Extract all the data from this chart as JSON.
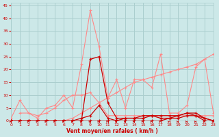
{
  "bg_color": "#cce8e8",
  "grid_color": "#aacece",
  "line_color_light": "#ff8888",
  "line_color_dark": "#cc0000",
  "xlabel": "Vent moyen/en rafales ( km/h )",
  "xlabel_color": "#cc0000",
  "xlim": [
    0,
    23
  ],
  "ylim": [
    0,
    46
  ],
  "yticks": [
    0,
    5,
    10,
    15,
    20,
    25,
    30,
    35,
    40,
    45
  ],
  "xticks": [
    0,
    1,
    2,
    3,
    4,
    5,
    6,
    7,
    8,
    9,
    10,
    11,
    12,
    13,
    14,
    15,
    16,
    17,
    18,
    19,
    20,
    21,
    22,
    23
  ],
  "light_lines": [
    {
      "x": [
        0,
        1,
        2,
        3,
        4,
        5,
        6,
        7,
        8,
        9,
        10,
        11,
        12,
        13,
        14,
        15,
        16,
        17,
        18,
        19,
        20,
        21,
        22,
        23
      ],
      "y": [
        1,
        8,
        3,
        1,
        5,
        6,
        10,
        5,
        22,
        43,
        29,
        9,
        16,
        5,
        16,
        16,
        13,
        26,
        3,
        3,
        6,
        21,
        24,
        3
      ]
    },
    {
      "x": [
        0,
        1,
        2,
        3,
        4,
        5,
        6,
        7,
        8,
        9,
        10,
        11,
        12,
        13,
        14,
        15,
        16,
        17,
        18,
        19,
        20,
        21,
        22,
        23
      ],
      "y": [
        0,
        0,
        0,
        0,
        0,
        0,
        0,
        1,
        3,
        5,
        7,
        9,
        11,
        13,
        15,
        16,
        17,
        18,
        19,
        20,
        21,
        22,
        24,
        26
      ]
    },
    {
      "x": [
        1,
        2,
        3,
        4,
        5,
        6,
        7,
        8,
        9,
        10,
        11,
        12,
        13,
        14,
        15,
        16,
        17,
        18,
        19,
        20,
        21,
        22,
        23
      ],
      "y": [
        3,
        3,
        2,
        3,
        5,
        8,
        10,
        10,
        11,
        7,
        2,
        2,
        2,
        2,
        2,
        2,
        2,
        2,
        2,
        2,
        2,
        2,
        2
      ]
    }
  ],
  "dark_lines": [
    {
      "x": [
        0,
        1,
        2,
        3,
        4,
        5,
        6,
        7,
        8,
        9,
        10,
        11,
        12,
        13,
        14,
        15,
        16,
        17,
        18,
        19,
        20,
        21,
        22,
        23
      ],
      "y": [
        0,
        0,
        0,
        0,
        0,
        0,
        0,
        0,
        0,
        24,
        25,
        7,
        1,
        1,
        1,
        1,
        2,
        1,
        1,
        1,
        2,
        2,
        1,
        0
      ]
    },
    {
      "x": [
        0,
        1,
        2,
        3,
        4,
        5,
        6,
        7,
        8,
        9,
        10,
        11,
        12,
        13,
        14,
        15,
        16,
        17,
        18,
        19,
        20,
        21,
        22,
        23
      ],
      "y": [
        0,
        0,
        0,
        0,
        0,
        0,
        0,
        0,
        1,
        2,
        6,
        1,
        0,
        0,
        0,
        0,
        0,
        0,
        1,
        2,
        3,
        2,
        0,
        0
      ]
    },
    {
      "x": [
        0,
        1,
        2,
        3,
        4,
        5,
        6,
        7,
        8,
        9,
        10,
        11,
        12,
        13,
        14,
        15,
        16,
        17,
        18,
        19,
        20,
        21,
        22,
        23
      ],
      "y": [
        0,
        0,
        0,
        0,
        0,
        0,
        0,
        0,
        0,
        0,
        0,
        0,
        0,
        1,
        1,
        2,
        2,
        2,
        2,
        2,
        3,
        3,
        1,
        0
      ]
    }
  ],
  "arrows_x": [
    0,
    1,
    2,
    3,
    4,
    5,
    6,
    7,
    8,
    9,
    10,
    11,
    12,
    13,
    14,
    15,
    16,
    17,
    18,
    19,
    20,
    21,
    22,
    23
  ]
}
